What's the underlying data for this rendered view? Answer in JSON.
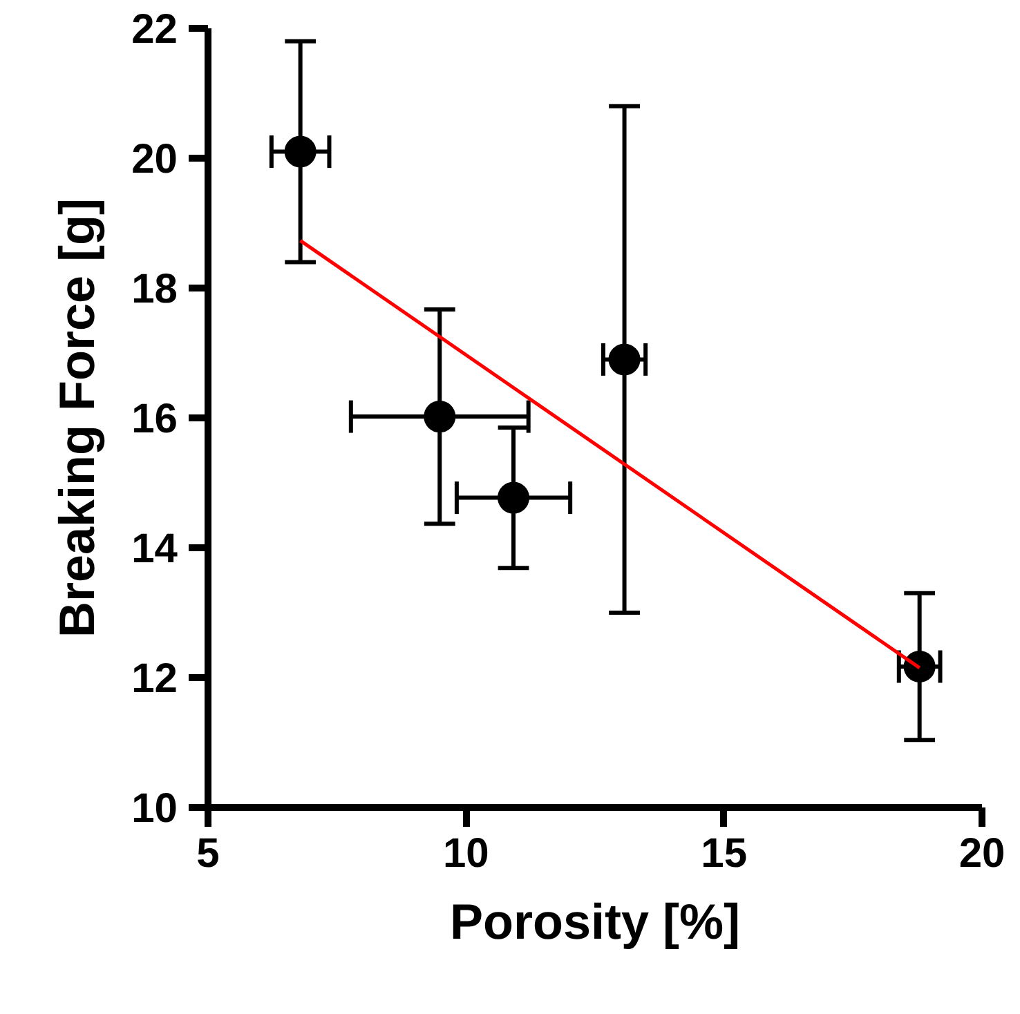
{
  "chart_data": {
    "type": "scatter",
    "xlabel": "Porosity [%]",
    "ylabel": "Breaking Force [g]",
    "xlim": [
      5,
      20
    ],
    "xticks": [
      5,
      10,
      15,
      20
    ],
    "ylim": [
      10,
      22
    ],
    "yticks": [
      10,
      12,
      14,
      16,
      18,
      20,
      22
    ],
    "grid": false,
    "series": [
      {
        "marker": "circle",
        "color": "#000000",
        "x": [
          6.79,
          9.49,
          10.92,
          13.07,
          18.79
        ],
        "values": [
          20.1,
          16.02,
          14.77,
          16.9,
          12.17
        ],
        "errors": [
          1.7,
          1.65,
          1.08,
          3.9,
          1.13
        ],
        "xerrors": [
          0.56,
          1.72,
          1.1,
          0.41,
          0.4
        ]
      },
      {
        "type": "line",
        "color": "#ff0000",
        "x": [
          6.79,
          18.79
        ],
        "values": [
          18.73,
          12.15
        ],
        "line_style": "solid"
      }
    ]
  }
}
